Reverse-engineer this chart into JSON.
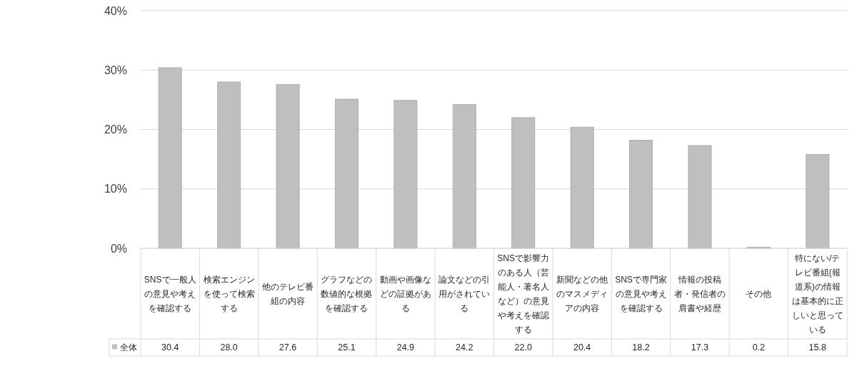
{
  "chart_data": {
    "type": "bar",
    "categories": [
      "SNSで一般人の意見や考えを確認する",
      "検索エンジンを使って検索する",
      "他のテレビ番組の内容",
      "グラフなどの数値的な根拠を確認する",
      "動画や画像などの証拠がある",
      "論文などの引用がされている",
      "SNSで影響力のある人（芸能人・著名人など）の意見や考えを確認する",
      "新聞などの他のマスメディアの内容",
      "SNSで専門家の意見や考えを確認する",
      "情報の投稿者・発信者の肩書や経歴",
      "その他",
      "特にない/テレビ番組(報道系)の情報は基本的に正しいと思っている"
    ],
    "series": [
      {
        "name": "全体",
        "color": "#bfbfbf",
        "values": [
          30.4,
          28.0,
          27.6,
          25.1,
          24.9,
          24.2,
          22.0,
          20.4,
          18.2,
          17.3,
          0.2,
          15.8
        ],
        "value_labels": [
          "30.4",
          "28.0",
          "27.6",
          "25.1",
          "24.9",
          "24.2",
          "22.0",
          "20.4",
          "18.2",
          "17.3",
          "0.2",
          "15.8"
        ]
      }
    ],
    "ylim": [
      0,
      40
    ],
    "yticks": [
      {
        "value": 0,
        "label": "0%"
      },
      {
        "value": 10,
        "label": "10%"
      },
      {
        "value": 20,
        "label": "20%"
      },
      {
        "value": 30,
        "label": "30%"
      },
      {
        "value": 40,
        "label": "40%"
      }
    ],
    "grid": "y",
    "legend": "bottom left"
  }
}
